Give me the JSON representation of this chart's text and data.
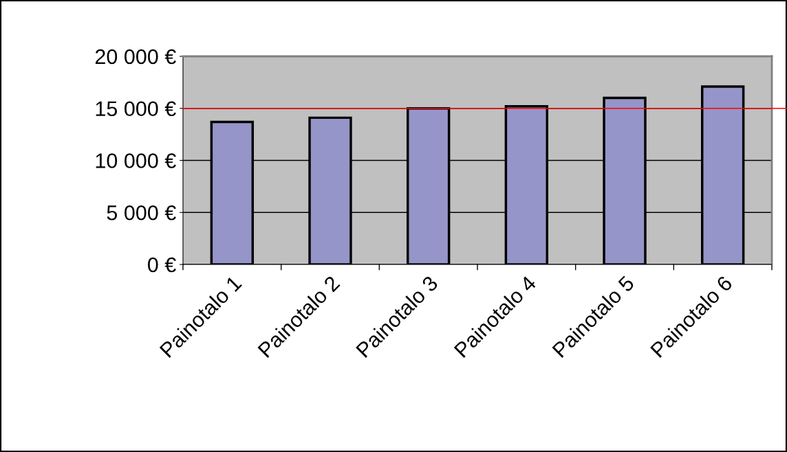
{
  "chart_data": {
    "type": "bar",
    "categories": [
      "Painotalo 1",
      "Painotalo 2",
      "Painotalo 3",
      "Painotalo 4",
      "Painotalo 5",
      "Painotalo 6"
    ],
    "values": [
      13700,
      14100,
      15000,
      15200,
      16000,
      17100
    ],
    "color": "#9595c9",
    "ylim": [
      0,
      20000
    ],
    "yticks": [
      {
        "value": 0,
        "label": "0 €"
      },
      {
        "value": 5000,
        "label": "5 000 €"
      },
      {
        "value": 10000,
        "label": "10 000 €"
      },
      {
        "value": 15000,
        "label": "15 000 €"
      },
      {
        "value": 20000,
        "label": "20 000 €"
      }
    ],
    "grid": "y",
    "legend": false,
    "ref_lines": [
      {
        "axis": "y",
        "value": 15000,
        "label": null,
        "color": "#ff0000"
      }
    ]
  }
}
